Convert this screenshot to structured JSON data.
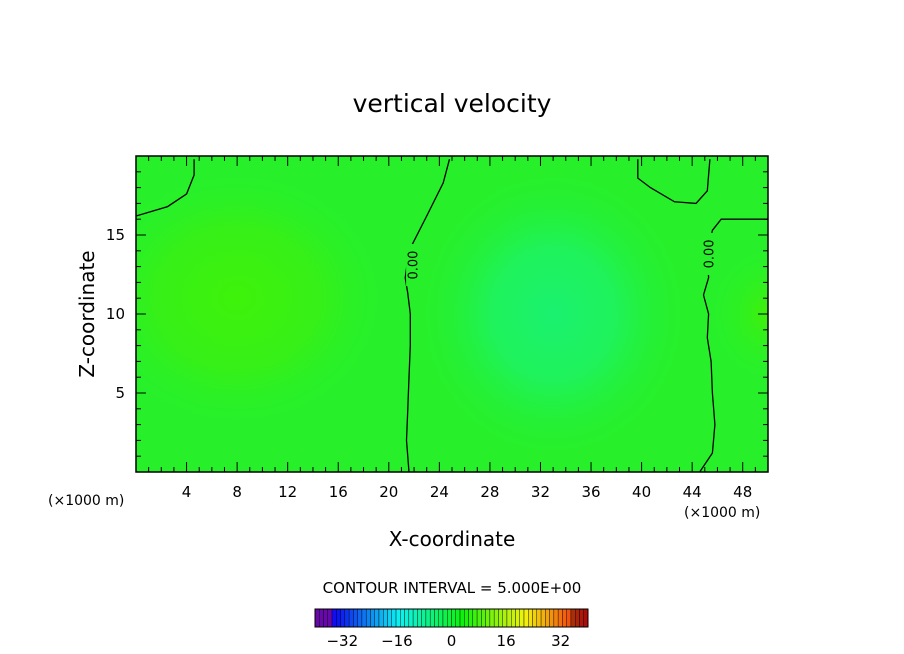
{
  "chart_data": {
    "type": "heatmap",
    "title": "vertical velocity",
    "xlabel": "X-coordinate",
    "ylabel": "Z-coordinate",
    "x_unit_label_left": "(×1000 m)",
    "x_unit_label_right": "(×1000 m)",
    "xlim": [
      0,
      50
    ],
    "ylim": [
      0,
      20
    ],
    "x_ticks": [
      4,
      8,
      12,
      16,
      20,
      24,
      28,
      32,
      36,
      40,
      44,
      48
    ],
    "y_ticks": [
      5,
      10,
      15
    ],
    "contour_interval_text": "CONTOUR INTERVAL = 5.000E+00",
    "contour_level_label": "0.00",
    "colorbar": {
      "range": [
        -40,
        40
      ],
      "ticks": [
        -32,
        -16,
        0,
        16,
        32
      ]
    },
    "field": {
      "features": [
        {
          "kind": "max",
          "x": 8,
          "z": 11,
          "description": "upward"
        },
        {
          "kind": "min",
          "x": 33,
          "z": 10,
          "description": "downward"
        },
        {
          "kind": "max",
          "x": 50,
          "z": 10,
          "description": "upward"
        }
      ]
    },
    "zero_contours": [
      {
        "points": [
          [
            0,
            16.2
          ],
          [
            2.5,
            16.8
          ],
          [
            4,
            17.6
          ],
          [
            4.6,
            18.8
          ],
          [
            4.6,
            19.8
          ]
        ]
      },
      {
        "points": [
          [
            21.6,
            0
          ],
          [
            21.4,
            2
          ],
          [
            21.5,
            4
          ],
          [
            21.6,
            6
          ],
          [
            21.7,
            8
          ],
          [
            21.7,
            10
          ],
          [
            21.5,
            11.3
          ],
          [
            21.3,
            12.3
          ],
          [
            21.6,
            14
          ],
          [
            23,
            16.2
          ],
          [
            24.3,
            18.3
          ],
          [
            24.8,
            19.8
          ]
        ]
      },
      {
        "points": [
          [
            39.7,
            19.8
          ],
          [
            39.7,
            18.6
          ],
          [
            40.7,
            18
          ],
          [
            42.6,
            17.1
          ],
          [
            44.3,
            17
          ],
          [
            45.2,
            17.8
          ],
          [
            45.4,
            19.8
          ]
        ]
      },
      {
        "points": [
          [
            50,
            16
          ],
          [
            46.3,
            16
          ],
          [
            45.6,
            15.3
          ],
          [
            45.2,
            13.8
          ],
          [
            45.3,
            12.3
          ],
          [
            44.9,
            11.2
          ],
          [
            45.3,
            10
          ],
          [
            45.2,
            8.5
          ],
          [
            45.5,
            7
          ],
          [
            45.6,
            5
          ],
          [
            45.8,
            3
          ],
          [
            45.6,
            1.2
          ],
          [
            44.6,
            0
          ]
        ]
      }
    ],
    "colors": {
      "background_field": "#27f02a",
      "contour_line": "#000000"
    },
    "grid": false
  }
}
